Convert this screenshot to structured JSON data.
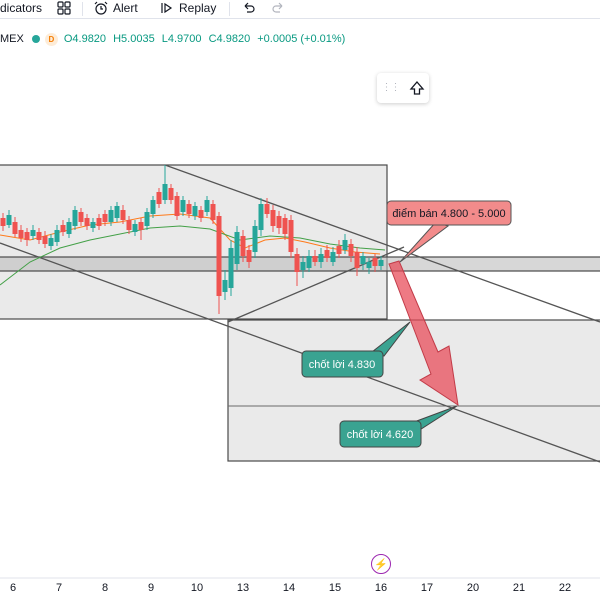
{
  "toolbar": {
    "indicators_label": "dicators",
    "alert_label": "Alert",
    "replay_label": "Replay"
  },
  "legend": {
    "symbol": "MEX",
    "interval_badge": "D",
    "open": "O4.9820",
    "high": "H5.0035",
    "low": "L4.9700",
    "close": "C4.9820",
    "change": "+0.0005 (+0.01%)"
  },
  "annotations": {
    "sell": "điểm bán 4.800 - 5.000",
    "tp1": "chốt lời 4.830",
    "tp2": "chốt lời 4.620"
  },
  "x_axis_ticks": [
    "6",
    "7",
    "8",
    "9",
    "10",
    "13",
    "14",
    "15",
    "16",
    "17",
    "20",
    "21",
    "22"
  ],
  "colors": {
    "bull": "#26a69a",
    "bear": "#ef5350",
    "sell_box": "#f28b8b",
    "tp_box": "#3aa391"
  }
}
